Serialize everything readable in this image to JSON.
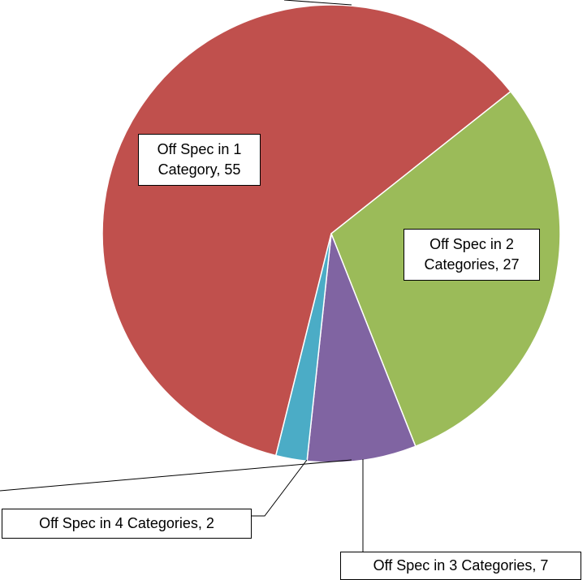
{
  "chart_data": {
    "type": "pie",
    "categories": [
      "Off Spec in 1 Category",
      "Off Spec in 2 Categories",
      "Off Spec in 3 Categories",
      "Off Spec in 4 Categories"
    ],
    "values": [
      55,
      27,
      7,
      2
    ],
    "value_labels": [
      "Off Spec in 1 Category, 55",
      "Off Spec in 2 Categories, 27",
      "Off Spec in 3 Categories, 7",
      "Off Spec in 4 Categories, 2"
    ],
    "colors": [
      "#c0504d",
      "#9bbb59",
      "#8064a2",
      "#4bacc6"
    ]
  }
}
